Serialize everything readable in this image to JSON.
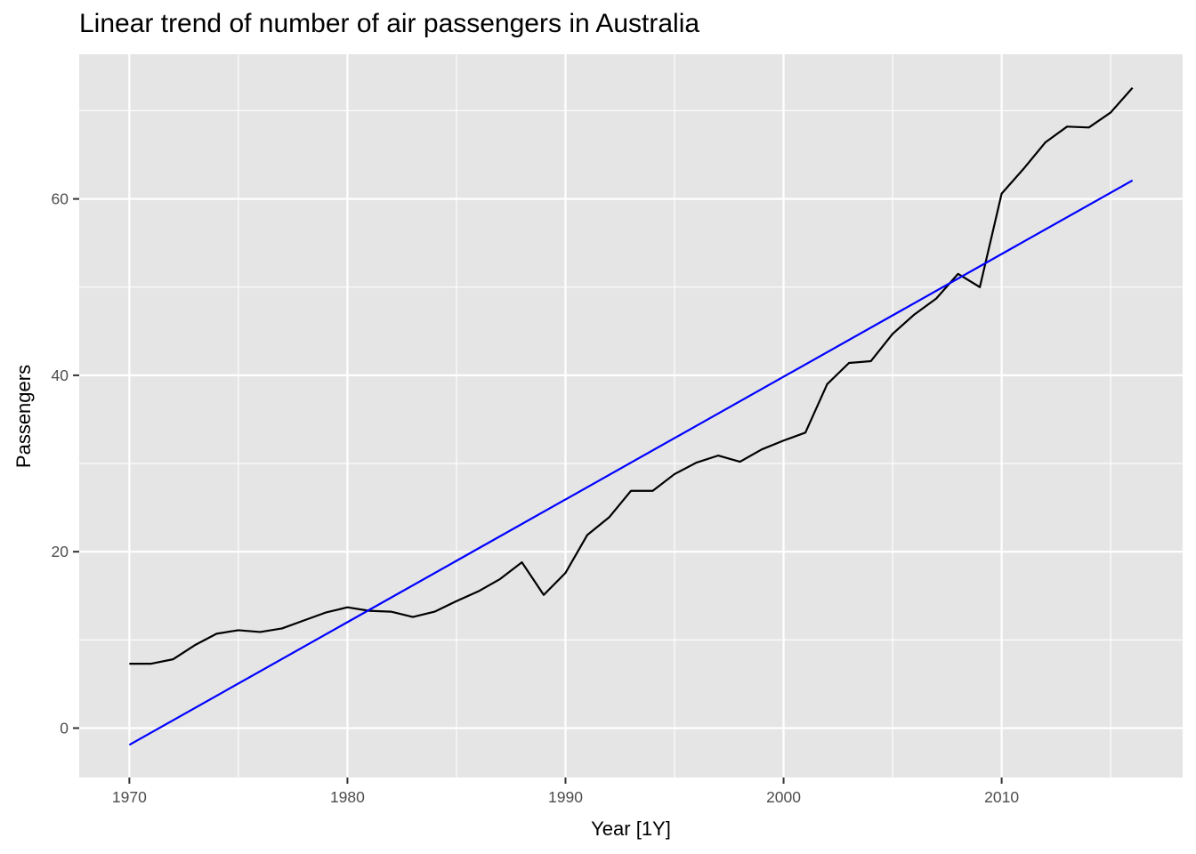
{
  "chart_data": {
    "type": "line",
    "title": "Linear trend of number of air passengers in Australia",
    "xlabel": "Year [1Y]",
    "ylabel": "Passengers",
    "xlim": [
      1967.7,
      2018.3
    ],
    "ylim": [
      -5.6,
      76.4
    ],
    "x_ticks": [
      1970,
      1980,
      1990,
      2000,
      2010
    ],
    "y_ticks": [
      0,
      20,
      40,
      60
    ],
    "grid": true,
    "legend": "none",
    "colors": {
      "panel": "#e5e5e5",
      "grid": "#ffffff",
      "passengers": "#000000",
      "trend": "#0000ff"
    },
    "series": [
      {
        "color": "#000000",
        "x": [
          1970,
          1971,
          1972,
          1973,
          1974,
          1975,
          1976,
          1977,
          1978,
          1979,
          1980,
          1981,
          1982,
          1983,
          1984,
          1985,
          1986,
          1987,
          1988,
          1989,
          1990,
          1991,
          1992,
          1993,
          1994,
          1995,
          1996,
          1997,
          1998,
          1999,
          2000,
          2001,
          2002,
          2003,
          2004,
          2005,
          2006,
          2007,
          2008,
          2009,
          2010,
          2011,
          2012,
          2013,
          2014,
          2015,
          2016
        ],
        "values": [
          7.3,
          7.3,
          7.8,
          9.4,
          10.7,
          11.1,
          10.9,
          11.3,
          12.2,
          13.1,
          13.7,
          13.3,
          13.2,
          12.6,
          13.2,
          14.4,
          15.5,
          16.9,
          18.8,
          15.1,
          17.6,
          21.9,
          23.9,
          26.9,
          26.9,
          28.8,
          30.1,
          30.9,
          30.2,
          31.6,
          32.6,
          33.5,
          39.0,
          41.4,
          41.6,
          44.7,
          46.9,
          48.7,
          51.5,
          50.0,
          60.6,
          63.4,
          66.4,
          68.2,
          68.1,
          69.8,
          72.6
        ]
      },
      {
        "color": "#0000ff",
        "x": [
          1970,
          2016
        ],
        "values": [
          -1.9,
          62.1
        ]
      }
    ]
  }
}
